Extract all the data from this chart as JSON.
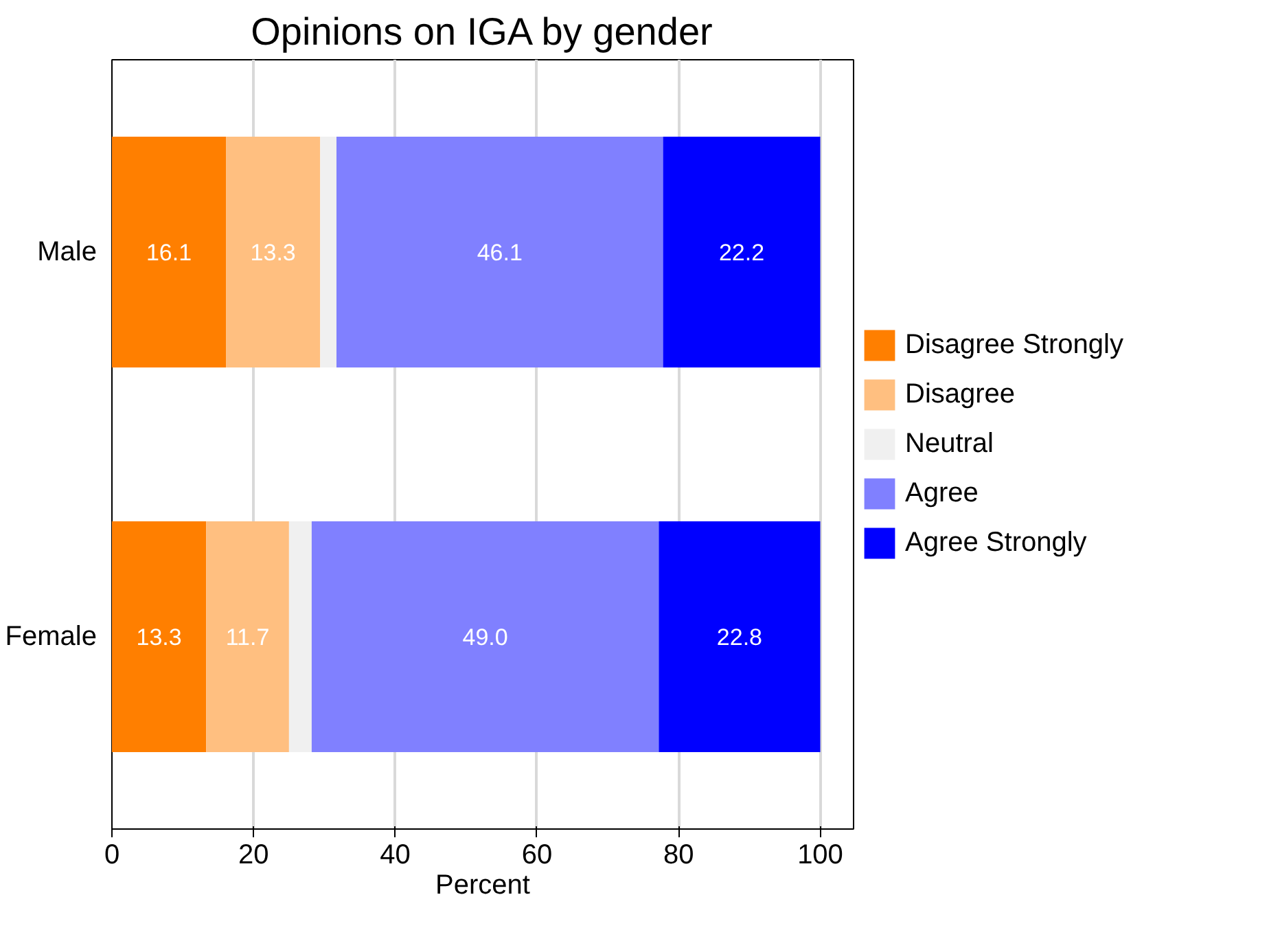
{
  "chart_data": {
    "type": "bar",
    "orientation": "horizontal",
    "stacked": true,
    "title": "Opinions on IGA by gender",
    "xlabel": "Percent",
    "categories": [
      "Male",
      "Female"
    ],
    "series": [
      {
        "name": "Disagree Strongly",
        "color": "#ff7f00",
        "values": [
          16.1,
          13.3
        ],
        "value_labels": [
          "16.1",
          "13.3"
        ]
      },
      {
        "name": "Disagree",
        "color": "#ffbf80",
        "values": [
          13.3,
          11.7
        ],
        "value_labels": [
          "13.3",
          "11.7"
        ]
      },
      {
        "name": "Neutral",
        "color": "#f0f0f0",
        "values": [
          2.3,
          3.2
        ],
        "value_labels": [
          null,
          null
        ]
      },
      {
        "name": "Agree",
        "color": "#8080ff",
        "values": [
          46.1,
          49.0
        ],
        "value_labels": [
          "46.1",
          "49.0"
        ]
      },
      {
        "name": "Agree Strongly",
        "color": "#0000ff",
        "values": [
          22.2,
          22.8
        ],
        "value_labels": [
          "22.2",
          "22.8"
        ]
      }
    ],
    "xlim": [
      0,
      104.7
    ],
    "xticks": [
      0,
      20,
      40,
      60,
      80,
      100
    ],
    "grid": "x",
    "legend": "right"
  }
}
